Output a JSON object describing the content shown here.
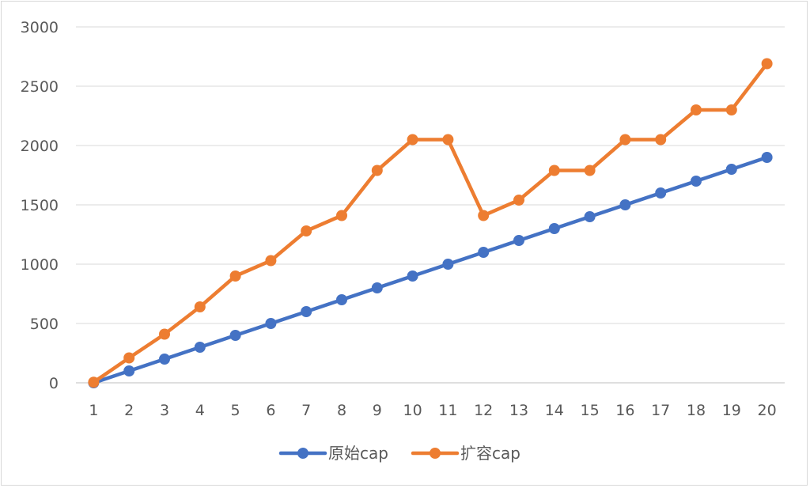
{
  "chart_data": {
    "type": "line",
    "title": "",
    "xlabel": "",
    "ylabel": "",
    "categories": [
      "1",
      "2",
      "3",
      "4",
      "5",
      "6",
      "7",
      "8",
      "9",
      "10",
      "11",
      "12",
      "13",
      "14",
      "15",
      "16",
      "17",
      "18",
      "19",
      "20"
    ],
    "ylim": [
      0,
      3000
    ],
    "yticks": [
      "0",
      "500",
      "1000",
      "1500",
      "2000",
      "2500",
      "3000"
    ],
    "grid": "horizontal",
    "legend": "bottom",
    "series": [
      {
        "name": "原始cap",
        "color": "#4472C4",
        "values": [
          0,
          100,
          200,
          300,
          400,
          500,
          600,
          700,
          800,
          900,
          1000,
          1100,
          1200,
          1300,
          1400,
          1500,
          1600,
          1700,
          1800,
          1900
        ]
      },
      {
        "name": "扩容cap",
        "color": "#ED7D31",
        "values": [
          5,
          210,
          410,
          640,
          900,
          1030,
          1280,
          1410,
          1790,
          2050,
          2050,
          1410,
          1540,
          1790,
          1790,
          2050,
          2050,
          2300,
          2300,
          2690
        ]
      }
    ]
  }
}
